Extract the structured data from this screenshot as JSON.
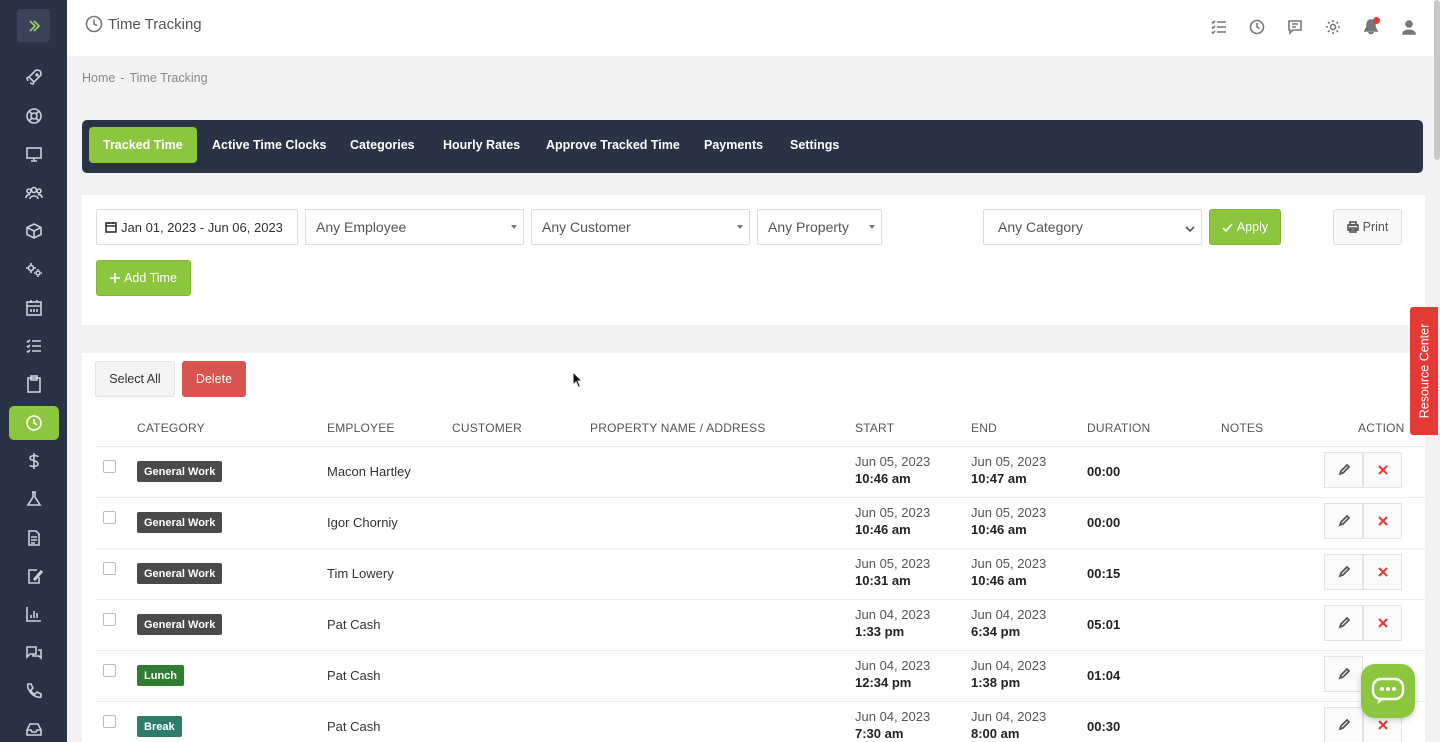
{
  "app": {
    "title": "Time Tracking"
  },
  "breadcrumb": {
    "home": "Home",
    "separator": "-",
    "current": "Time Tracking"
  },
  "sidebar": {
    "items": [
      {
        "icon": "rocket-icon"
      },
      {
        "icon": "lifebuoy-icon"
      },
      {
        "icon": "monitor-icon"
      },
      {
        "icon": "users-icon"
      },
      {
        "icon": "box-icon"
      },
      {
        "icon": "gears-icon"
      },
      {
        "icon": "calendar-icon"
      },
      {
        "icon": "tasks-icon"
      },
      {
        "icon": "clipboard-icon"
      },
      {
        "icon": "clock-icon",
        "active": true
      },
      {
        "icon": "dollar-icon"
      },
      {
        "icon": "flask-icon"
      },
      {
        "icon": "document-icon"
      },
      {
        "icon": "edit-doc-icon"
      },
      {
        "icon": "bar-chart-icon"
      },
      {
        "icon": "chat-bubbles-icon"
      },
      {
        "icon": "phone-icon"
      },
      {
        "icon": "inbox-icon"
      }
    ]
  },
  "tabs": [
    {
      "label": "Tracked Time",
      "active": true
    },
    {
      "label": "Active Time Clocks"
    },
    {
      "label": "Categories"
    },
    {
      "label": "Hourly Rates"
    },
    {
      "label": "Approve Tracked Time"
    },
    {
      "label": "Payments"
    },
    {
      "label": "Settings"
    }
  ],
  "filters": {
    "date_range": "Jan 01, 2023 - Jun 06, 2023",
    "employee": "Any Employee",
    "customer": "Any Customer",
    "property": "Any Property",
    "category": "Any Category",
    "apply_label": "Apply",
    "print_label": "Print",
    "add_time_label": "Add Time"
  },
  "table": {
    "select_all_label": "Select All",
    "delete_label": "Delete",
    "headers": {
      "category": "CATEGORY",
      "employee": "EMPLOYEE",
      "customer": "CUSTOMER",
      "property": "PROPERTY NAME / ADDRESS",
      "start": "START",
      "end": "END",
      "duration": "DURATION",
      "notes": "NOTES",
      "action": "ACTION"
    },
    "rows": [
      {
        "category": "General Work",
        "employee": "Macon Hartley",
        "start_date": "Jun 05, 2023",
        "start_time": "10:46 am",
        "end_date": "Jun 05, 2023",
        "end_time": "10:47 am",
        "duration": "00:00"
      },
      {
        "category": "General Work",
        "employee": "Igor Chorniy",
        "start_date": "Jun 05, 2023",
        "start_time": "10:46 am",
        "end_date": "Jun 05, 2023",
        "end_time": "10:46 am",
        "duration": "00:00"
      },
      {
        "category": "General Work",
        "employee": "Tim Lowery",
        "start_date": "Jun 05, 2023",
        "start_time": "10:31 am",
        "end_date": "Jun 05, 2023",
        "end_time": "10:46 am",
        "duration": "00:15"
      },
      {
        "category": "General Work",
        "employee": "Pat Cash",
        "start_date": "Jun 04, 2023",
        "start_time": "1:33 pm",
        "end_date": "Jun 04, 2023",
        "end_time": "6:34 pm",
        "duration": "05:01"
      },
      {
        "category": "Lunch",
        "employee": "Pat Cash",
        "start_date": "Jun 04, 2023",
        "start_time": "12:34 pm",
        "end_date": "Jun 04, 2023",
        "end_time": "1:38 pm",
        "duration": "01:04"
      },
      {
        "category": "Break",
        "employee": "Pat Cash",
        "start_date": "Jun 04, 2023",
        "start_time": "7:30 am",
        "end_date": "Jun 04, 2023",
        "end_time": "8:00 am",
        "duration": "00:30"
      }
    ]
  },
  "colors": {
    "accent": "#8cc63f",
    "navy": "#2a3246",
    "danger": "#d9534f",
    "badge_general": "#4a4a4a",
    "badge_lunch": "#2e7d32",
    "badge_break": "#2e7d6b"
  },
  "resource_center_label": "Resource Center"
}
